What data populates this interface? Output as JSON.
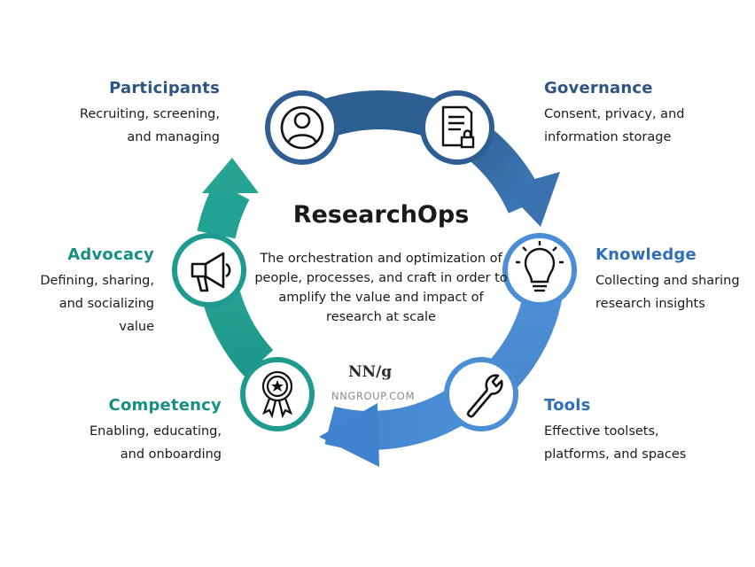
{
  "center": {
    "title": "ResearchOps",
    "description": "The orchestration and optimization of people, processes, and craft in order to amplify the value and impact of research at scale"
  },
  "brand": {
    "logo": "NN/g",
    "url": "NNGROUP.COM"
  },
  "colors": {
    "navy": "#2f5f92",
    "blue": "#4a8ed6",
    "teal": "#1f9a8e",
    "navy_text": "#2c5485",
    "blue_text": "#2f6fb8",
    "teal_text": "#198f83"
  },
  "stages": [
    {
      "id": "participants",
      "title": "Participants",
      "description": "Recruiting, screening, and managing",
      "icon": "person-icon"
    },
    {
      "id": "governance",
      "title": "Governance",
      "description": "Consent, privacy, and information storage",
      "icon": "document-lock-icon"
    },
    {
      "id": "knowledge",
      "title": "Knowledge",
      "description": "Collecting and sharing research insights",
      "icon": "lightbulb-icon"
    },
    {
      "id": "tools",
      "title": "Tools",
      "description": "Effective toolsets, platforms, and spaces",
      "icon": "wrench-icon"
    },
    {
      "id": "competency",
      "title": "Competency",
      "description": "Enabling, educating, and onboarding",
      "icon": "award-ribbon-icon"
    },
    {
      "id": "advocacy",
      "title": "Advocacy",
      "description": "Defining, sharing, and socializing value",
      "icon": "megaphone-icon"
    }
  ]
}
